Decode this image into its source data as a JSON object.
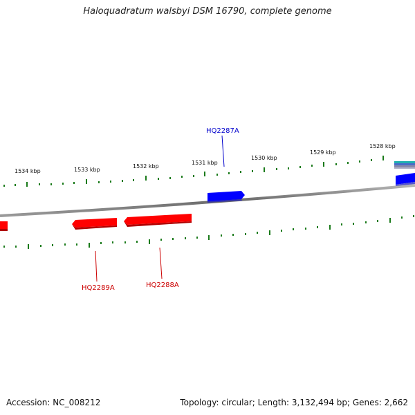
{
  "title": "Haloquadratum walsbyi DSM 16790, complete genome",
  "footer": {
    "accession": "Accession: NC_008212",
    "topology": "Topology: circular; Length: 3,132,494 bp; Genes: 2,662"
  },
  "kbp_labels": [
    "1534 kbp",
    "1533 kbp",
    "1532 kbp",
    "1531 kbp",
    "1530 kbp",
    "1529 kbp",
    "1528 kbp"
  ],
  "genes": [
    {
      "name": "HQ2287A",
      "strand": "+",
      "color": "#0000ff"
    },
    {
      "name": "HQ2288A",
      "strand": "-",
      "color": "#dd0000"
    },
    {
      "name": "HQ2289A",
      "strand": "-",
      "color": "#dd0000"
    }
  ],
  "colors": {
    "tick": "#1a7a1a",
    "backbone": "#777777",
    "forward": "#0000ff",
    "reverse": "#ff0000"
  }
}
